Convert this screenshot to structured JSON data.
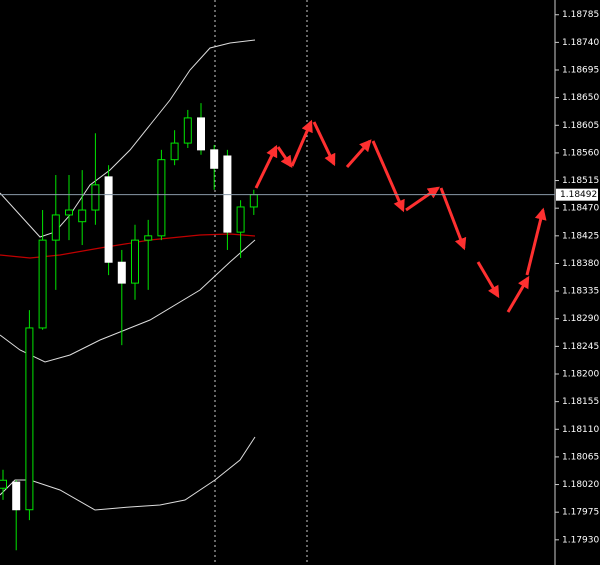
{
  "chart_data": {
    "type": "candlestick",
    "open": [
      1.18014,
      1.18024,
      1.17979,
      1.18275,
      1.18418,
      1.18459,
      1.18448,
      1.18467,
      1.18521,
      1.18382,
      1.18348,
      1.18418,
      1.18425,
      1.18549,
      1.18576,
      1.18617,
      1.18565,
      1.18555,
      1.18431,
      1.18472
    ],
    "high": [
      1.18044,
      1.18027,
      1.18304,
      1.18467,
      1.18524,
      1.18524,
      1.18532,
      1.18592,
      1.1854,
      1.18402,
      1.18443,
      1.18451,
      1.18565,
      1.18597,
      1.1863,
      1.18641,
      1.18573,
      1.18565,
      1.18483,
      1.185
    ],
    "low": [
      1.17995,
      1.17913,
      1.17962,
      1.18272,
      1.18337,
      1.18418,
      1.1841,
      1.18443,
      1.18361,
      1.18247,
      1.18321,
      1.18337,
      1.18418,
      1.1854,
      1.18568,
      1.18557,
      1.185,
      1.18402,
      1.18389,
      1.18459
    ],
    "close": [
      1.18027,
      1.17979,
      1.18275,
      1.18418,
      1.18459,
      1.18467,
      1.18467,
      1.18508,
      1.18382,
      1.18348,
      1.18418,
      1.18425,
      1.18549,
      1.18576,
      1.18617,
      1.18565,
      1.18535,
      1.18431,
      1.18472,
      1.18492
    ],
    "up_color": "#00e600",
    "down_color": "#ffffff",
    "current_price": 1.18492,
    "ylim": [
      1.17889,
      1.18809
    ],
    "yticks": [
      1.18785,
      {
        "value": 1.1874,
        "label": "1.18740"
      },
      1.18695,
      {
        "value": 1.1865,
        "label": "1.18650"
      },
      1.18605,
      {
        "value": 1.1856,
        "label": "1.18560"
      },
      1.18515,
      {
        "value": 1.1847,
        "label": "1.18470"
      },
      1.18425,
      {
        "value": 1.1838,
        "label": "1.18380"
      },
      1.18335,
      {
        "value": 1.1829,
        "label": "1.18290"
      },
      1.18245,
      {
        "value": 1.182,
        "label": "1.18200"
      },
      1.18155,
      {
        "value": 1.1811,
        "label": "1.18110"
      },
      1.18065,
      {
        "value": 1.1802,
        "label": "1.18020"
      },
      1.17975,
      {
        "value": 1.1793,
        "label": "1.17930"
      }
    ]
  }
}
